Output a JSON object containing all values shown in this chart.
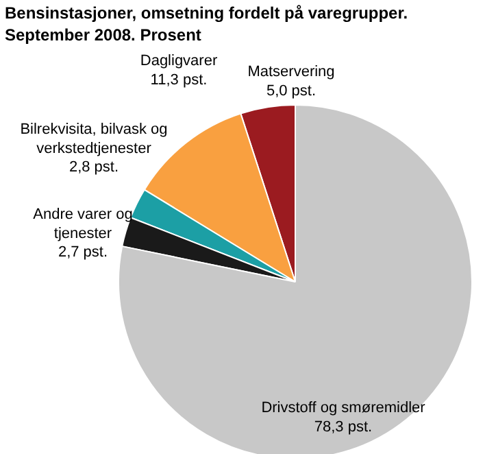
{
  "chart_data": {
    "type": "pie",
    "title": "Bensinstasjoner, omsetning fordelt på varegrupper.\nSeptember 2008. Prosent",
    "categories": [
      "Matservering",
      "Dagligvarer",
      "Bilrekvisita, bilvask og\nverkstedtjenester",
      "Andre varer og\ntjenester",
      "Drivstoff og smøremidler"
    ],
    "values": [
      5.0,
      11.3,
      2.8,
      2.7,
      78.3
    ],
    "value_labels": [
      "5,0 pst.",
      "11,3 pst.",
      "2,8 pst.",
      "2,7 pst.",
      "78,3 pst."
    ],
    "colors": [
      "#9b1b20",
      "#f9a040",
      "#1c9fa5",
      "#1a1a1a",
      "#c8c8c8"
    ]
  }
}
